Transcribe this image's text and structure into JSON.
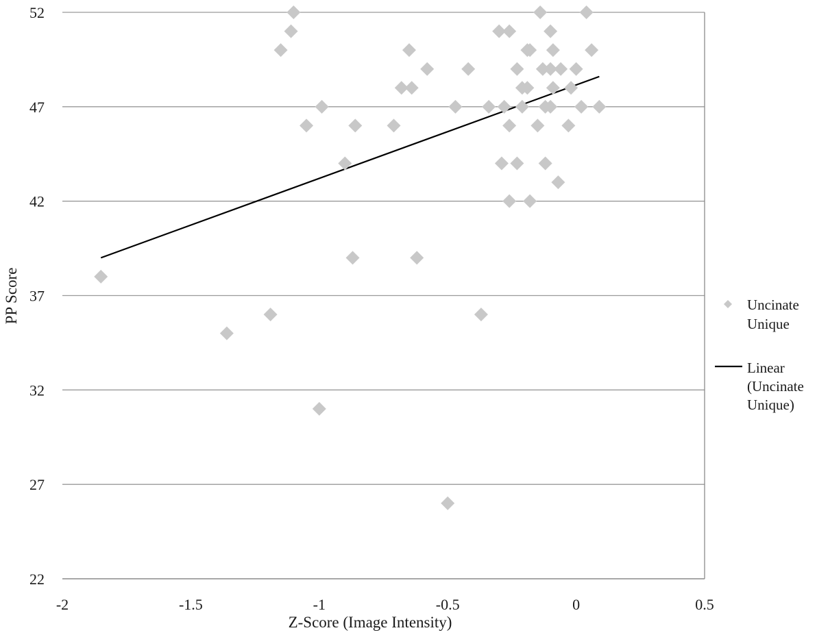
{
  "chart_data": {
    "type": "scatter",
    "title": "",
    "xlabel": "Z-Score (Image Intensity)",
    "ylabel": "PP Score",
    "xlim": [
      -2,
      0.5
    ],
    "ylim": [
      22,
      52
    ],
    "x_ticks": [
      "-2",
      "-1.5",
      "-1",
      "-0.5",
      "0",
      "0.5"
    ],
    "y_ticks": [
      "52",
      "47",
      "42",
      "37",
      "32",
      "27",
      "22"
    ],
    "grid": "horizontal",
    "legend_position": "right",
    "series": [
      {
        "name": "Uncinate Unique",
        "marker": "diamond",
        "color": "#c8c8c8",
        "legend_lines": [
          "Uncinate",
          "Unique"
        ],
        "points": [
          [
            -1.85,
            38
          ],
          [
            -1.36,
            35
          ],
          [
            -1.19,
            36
          ],
          [
            -1.15,
            50
          ],
          [
            -1.11,
            51
          ],
          [
            -1.1,
            52
          ],
          [
            -1.05,
            46
          ],
          [
            -0.99,
            47
          ],
          [
            -1.0,
            31
          ],
          [
            -0.9,
            44
          ],
          [
            -0.87,
            39
          ],
          [
            -0.86,
            46
          ],
          [
            -0.71,
            46
          ],
          [
            -0.68,
            48
          ],
          [
            -0.64,
            48
          ],
          [
            -0.65,
            50
          ],
          [
            -0.58,
            49
          ],
          [
            -0.62,
            39
          ],
          [
            -0.5,
            26
          ],
          [
            -0.47,
            47
          ],
          [
            -0.42,
            49
          ],
          [
            -0.37,
            36
          ],
          [
            -0.34,
            47
          ],
          [
            -0.3,
            51
          ],
          [
            -0.29,
            44
          ],
          [
            -0.28,
            47
          ],
          [
            -0.26,
            51
          ],
          [
            -0.26,
            46
          ],
          [
            -0.26,
            42
          ],
          [
            -0.23,
            44
          ],
          [
            -0.23,
            49
          ],
          [
            -0.21,
            47
          ],
          [
            -0.21,
            48
          ],
          [
            -0.19,
            48
          ],
          [
            -0.19,
            50
          ],
          [
            -0.18,
            50
          ],
          [
            -0.18,
            42
          ],
          [
            -0.15,
            46
          ],
          [
            -0.14,
            52
          ],
          [
            -0.13,
            49
          ],
          [
            -0.12,
            44
          ],
          [
            -0.12,
            47
          ],
          [
            -0.1,
            47
          ],
          [
            -0.1,
            51
          ],
          [
            -0.1,
            49
          ],
          [
            -0.09,
            48
          ],
          [
            -0.09,
            50
          ],
          [
            -0.07,
            43
          ],
          [
            -0.06,
            49
          ],
          [
            -0.03,
            46
          ],
          [
            -0.02,
            48
          ],
          [
            0.0,
            49
          ],
          [
            0.02,
            47
          ],
          [
            0.04,
            52
          ],
          [
            0.06,
            50
          ],
          [
            0.09,
            47
          ]
        ]
      },
      {
        "name": "Linear (Uncinate Unique)",
        "type": "line",
        "color": "#000000",
        "legend_lines": [
          "Linear",
          "(Uncinate",
          "Unique)"
        ],
        "points": [
          [
            -1.85,
            39
          ],
          [
            0.09,
            48.6
          ]
        ]
      }
    ]
  }
}
